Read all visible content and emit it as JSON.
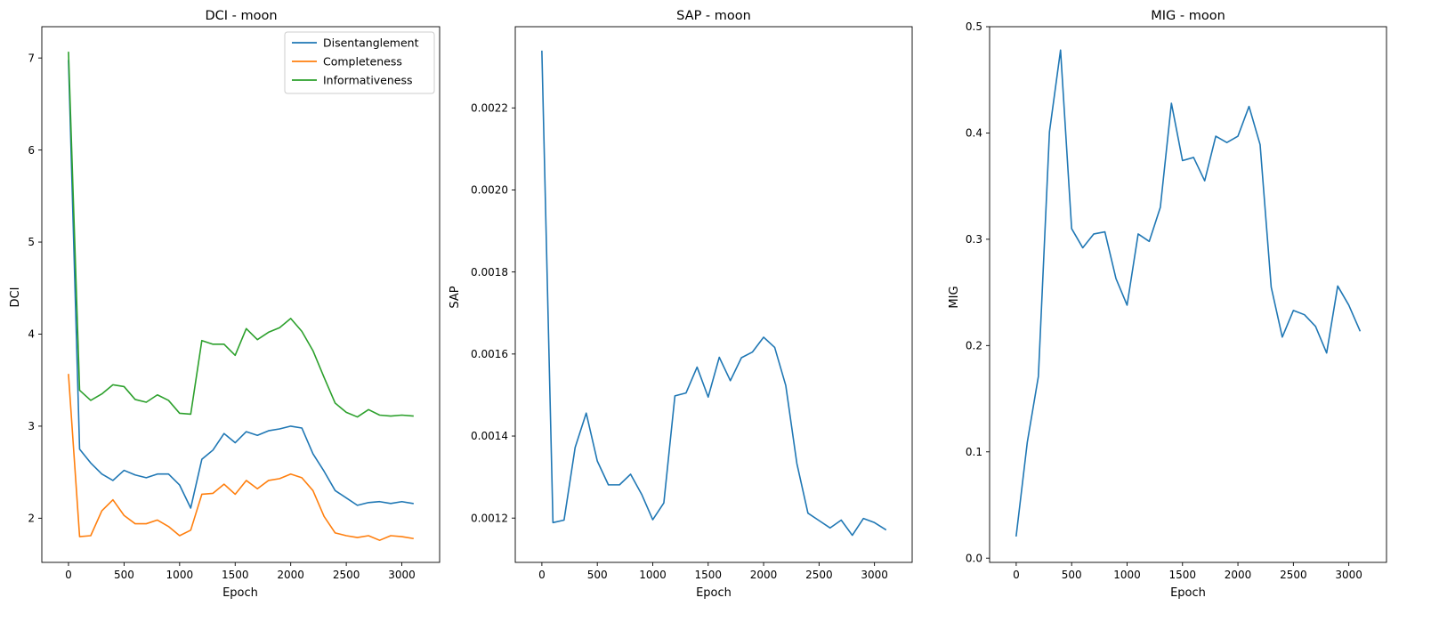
{
  "chart_data": [
    {
      "type": "line",
      "title": "DCI - moon",
      "xlabel": "Epoch",
      "ylabel": "DCI",
      "xlim": [
        -240,
        3340
      ],
      "ylim": [
        1.52,
        7.34
      ],
      "xticks": [
        0,
        500,
        1000,
        1500,
        2000,
        2500,
        3000
      ],
      "yticks": [
        2,
        3,
        4,
        5,
        6,
        7
      ],
      "ytick_labels": [
        "2",
        "3",
        "4",
        "5",
        "6",
        "7"
      ],
      "legend_position": "top-right",
      "grid": false,
      "x": [
        0,
        100,
        200,
        300,
        400,
        500,
        600,
        700,
        800,
        900,
        1000,
        1100,
        1200,
        1300,
        1400,
        1500,
        1600,
        1700,
        1800,
        1900,
        2000,
        2100,
        2200,
        2300,
        2400,
        2500,
        2600,
        2700,
        2800,
        2900,
        3000,
        3100
      ],
      "series": [
        {
          "name": "Disentanglement",
          "color": "#1f77b4",
          "values": [
            6.97,
            2.75,
            2.6,
            2.48,
            2.41,
            2.52,
            2.47,
            2.44,
            2.48,
            2.48,
            2.36,
            2.11,
            2.64,
            2.74,
            2.92,
            2.82,
            2.94,
            2.9,
            2.95,
            2.97,
            3.0,
            2.98,
            2.7,
            2.51,
            2.3,
            2.22,
            2.14,
            2.17,
            2.18,
            2.16,
            2.18,
            2.16
          ]
        },
        {
          "name": "Completeness",
          "color": "#ff7f0e",
          "values": [
            3.56,
            1.8,
            1.81,
            2.08,
            2.2,
            2.03,
            1.94,
            1.94,
            1.98,
            1.91,
            1.81,
            1.87,
            2.26,
            2.27,
            2.37,
            2.26,
            2.41,
            2.32,
            2.41,
            2.43,
            2.48,
            2.44,
            2.3,
            2.02,
            1.84,
            1.81,
            1.79,
            1.81,
            1.76,
            1.81,
            1.8,
            1.78
          ]
        },
        {
          "name": "Informativeness",
          "color": "#2ca02c",
          "values": [
            7.06,
            3.39,
            3.28,
            3.35,
            3.45,
            3.43,
            3.29,
            3.26,
            3.34,
            3.28,
            3.14,
            3.13,
            3.93,
            3.89,
            3.89,
            3.77,
            4.06,
            3.94,
            4.02,
            4.07,
            4.17,
            4.03,
            3.82,
            3.53,
            3.25,
            3.15,
            3.1,
            3.18,
            3.12,
            3.11,
            3.12,
            3.11
          ]
        }
      ]
    },
    {
      "type": "line",
      "title": "SAP - moon",
      "xlabel": "Epoch",
      "ylabel": "SAP",
      "xlim": [
        -240,
        3340
      ],
      "ylim": [
        0.001092,
        0.002398
      ],
      "xticks": [
        0,
        500,
        1000,
        1500,
        2000,
        2500,
        3000
      ],
      "yticks": [
        0.0012,
        0.0014,
        0.0016,
        0.0018,
        0.002,
        0.0022
      ],
      "ytick_labels": [
        "0.0012",
        "0.0014",
        "0.0016",
        "0.0018",
        "0.0020",
        "0.0022"
      ],
      "grid": false,
      "x": [
        0,
        100,
        200,
        300,
        400,
        500,
        600,
        700,
        800,
        900,
        1000,
        1100,
        1200,
        1300,
        1400,
        1500,
        1600,
        1700,
        1800,
        1900,
        2000,
        2100,
        2200,
        2300,
        2400,
        2500,
        2600,
        2700,
        2800,
        2900,
        3000,
        3100
      ],
      "series": [
        {
          "name": "",
          "color": "#1f77b4",
          "values": [
            0.002338,
            0.001189,
            0.001195,
            0.001372,
            0.001456,
            0.001339,
            0.001281,
            0.001281,
            0.001307,
            0.001258,
            0.001196,
            0.001237,
            0.001498,
            0.001505,
            0.001568,
            0.001495,
            0.001592,
            0.001535,
            0.001591,
            0.001605,
            0.001641,
            0.001616,
            0.001523,
            0.001333,
            0.001212,
            0.001194,
            0.001176,
            0.001195,
            0.001158,
            0.001199,
            0.001189,
            0.001172
          ]
        }
      ]
    },
    {
      "type": "line",
      "title": "MIG - moon",
      "xlabel": "Epoch",
      "ylabel": "MIG",
      "xlim": [
        -240,
        3340
      ],
      "ylim": [
        -0.004,
        0.5
      ],
      "xticks": [
        0,
        500,
        1000,
        1500,
        2000,
        2500,
        3000
      ],
      "yticks": [
        0.0,
        0.1,
        0.2,
        0.3,
        0.4,
        0.5
      ],
      "ytick_labels": [
        "0.0",
        "0.1",
        "0.2",
        "0.3",
        "0.4",
        "0.5"
      ],
      "grid": false,
      "x": [
        0,
        100,
        200,
        300,
        400,
        500,
        600,
        700,
        800,
        900,
        1000,
        1100,
        1200,
        1300,
        1400,
        1500,
        1600,
        1700,
        1800,
        1900,
        2000,
        2100,
        2200,
        2300,
        2400,
        2500,
        2600,
        2700,
        2800,
        2900,
        3000,
        3100
      ],
      "series": [
        {
          "name": "",
          "color": "#1f77b4",
          "values": [
            0.021,
            0.109,
            0.171,
            0.401,
            0.478,
            0.31,
            0.292,
            0.305,
            0.307,
            0.263,
            0.238,
            0.305,
            0.298,
            0.33,
            0.428,
            0.374,
            0.377,
            0.355,
            0.397,
            0.391,
            0.397,
            0.425,
            0.389,
            0.255,
            0.208,
            0.233,
            0.229,
            0.218,
            0.193,
            0.256,
            0.238,
            0.214
          ]
        }
      ]
    }
  ]
}
